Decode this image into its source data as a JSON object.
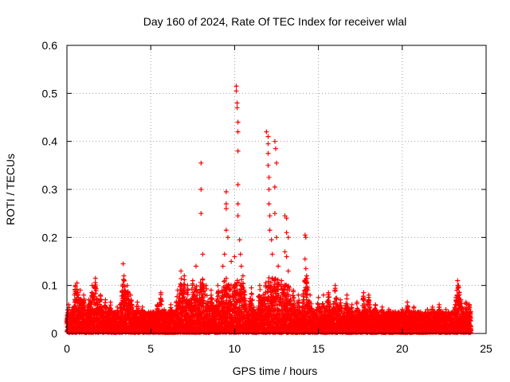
{
  "chart_data": {
    "type": "scatter",
    "title": "Day 160 of 2024, Rate Of TEC Index for receiver wlal",
    "xlabel": "GPS time / hours",
    "ylabel": "ROTI / TECUs",
    "xlim": [
      0,
      25
    ],
    "ylim": [
      0,
      0.6
    ],
    "xticks": [
      0,
      5,
      10,
      15,
      20,
      25
    ],
    "yticks": [
      0,
      0.1,
      0.2,
      0.3,
      0.4,
      0.5,
      0.6
    ],
    "xtick_labels": [
      "0",
      "5",
      "10",
      "15",
      "20",
      "25"
    ],
    "ytick_labels": [
      "0",
      "0.1",
      "0.2",
      "0.3",
      "0.4",
      "0.5",
      "0.6"
    ],
    "grid": true,
    "marker": "+",
    "marker_color": "#ff0000",
    "series": [
      {
        "name": "ROTI",
        "points": [
          [
            0.1,
            0.06
          ],
          [
            0.3,
            0.05
          ],
          [
            0.5,
            0.1
          ],
          [
            0.6,
            0.105
          ],
          [
            0.8,
            0.09
          ],
          [
            1.0,
            0.08
          ],
          [
            1.3,
            0.07
          ],
          [
            1.5,
            0.1
          ],
          [
            1.7,
            0.115
          ],
          [
            2.0,
            0.08
          ],
          [
            2.3,
            0.07
          ],
          [
            2.6,
            0.065
          ],
          [
            3.0,
            0.055
          ],
          [
            3.35,
            0.145
          ],
          [
            3.4,
            0.12
          ],
          [
            3.6,
            0.1
          ],
          [
            3.8,
            0.08
          ],
          [
            4.2,
            0.065
          ],
          [
            4.5,
            0.055
          ],
          [
            5.0,
            0.045
          ],
          [
            5.4,
            0.06
          ],
          [
            5.6,
            0.085
          ],
          [
            5.8,
            0.05
          ],
          [
            6.2,
            0.06
          ],
          [
            6.6,
            0.09
          ],
          [
            6.8,
            0.13
          ],
          [
            7.0,
            0.12
          ],
          [
            7.2,
            0.1
          ],
          [
            7.5,
            0.11
          ],
          [
            7.7,
            0.14
          ],
          [
            8.0,
            0.355
          ],
          [
            8.0,
            0.3
          ],
          [
            8.0,
            0.25
          ],
          [
            8.1,
            0.165
          ],
          [
            8.3,
            0.1
          ],
          [
            8.6,
            0.09
          ],
          [
            9.0,
            0.1
          ],
          [
            9.3,
            0.14
          ],
          [
            9.4,
            0.165
          ],
          [
            9.5,
            0.295
          ],
          [
            9.5,
            0.27
          ],
          [
            9.5,
            0.26
          ],
          [
            9.5,
            0.215
          ],
          [
            9.6,
            0.2
          ],
          [
            9.8,
            0.15
          ],
          [
            10.0,
            0.16
          ],
          [
            10.1,
            0.515
          ],
          [
            10.1,
            0.505
          ],
          [
            10.15,
            0.48
          ],
          [
            10.15,
            0.47
          ],
          [
            10.2,
            0.44
          ],
          [
            10.2,
            0.42
          ],
          [
            10.2,
            0.38
          ],
          [
            10.2,
            0.31
          ],
          [
            10.2,
            0.27
          ],
          [
            10.2,
            0.245
          ],
          [
            10.3,
            0.195
          ],
          [
            10.35,
            0.165
          ],
          [
            10.4,
            0.14
          ],
          [
            10.5,
            0.12
          ],
          [
            11.0,
            0.095
          ],
          [
            11.5,
            0.1
          ],
          [
            11.7,
            0.08
          ],
          [
            11.9,
            0.42
          ],
          [
            12.0,
            0.41
          ],
          [
            12.0,
            0.395
          ],
          [
            12.0,
            0.375
          ],
          [
            12.0,
            0.35
          ],
          [
            12.05,
            0.325
          ],
          [
            12.05,
            0.3
          ],
          [
            12.05,
            0.27
          ],
          [
            12.1,
            0.245
          ],
          [
            12.1,
            0.215
          ],
          [
            12.2,
            0.195
          ],
          [
            12.25,
            0.165
          ],
          [
            12.4,
            0.4
          ],
          [
            12.45,
            0.385
          ],
          [
            12.5,
            0.355
          ],
          [
            12.4,
            0.305
          ],
          [
            12.4,
            0.25
          ],
          [
            12.5,
            0.2
          ],
          [
            12.6,
            0.14
          ],
          [
            12.8,
            0.11
          ],
          [
            13.0,
            0.245
          ],
          [
            13.1,
            0.24
          ],
          [
            13.1,
            0.21
          ],
          [
            13.2,
            0.2
          ],
          [
            13.0,
            0.17
          ],
          [
            13.1,
            0.16
          ],
          [
            13.2,
            0.13
          ],
          [
            13.5,
            0.09
          ],
          [
            13.8,
            0.08
          ],
          [
            14.2,
            0.205
          ],
          [
            14.25,
            0.2
          ],
          [
            14.2,
            0.155
          ],
          [
            14.25,
            0.135
          ],
          [
            14.3,
            0.12
          ],
          [
            14.5,
            0.08
          ],
          [
            15.0,
            0.075
          ],
          [
            15.3,
            0.08
          ],
          [
            15.6,
            0.085
          ],
          [
            16.0,
            0.1
          ],
          [
            16.3,
            0.07
          ],
          [
            16.7,
            0.08
          ],
          [
            17.0,
            0.06
          ],
          [
            17.3,
            0.065
          ],
          [
            17.7,
            0.085
          ],
          [
            18.0,
            0.08
          ],
          [
            18.4,
            0.06
          ],
          [
            18.8,
            0.055
          ],
          [
            19.2,
            0.05
          ],
          [
            19.6,
            0.045
          ],
          [
            20.0,
            0.05
          ],
          [
            20.3,
            0.065
          ],
          [
            20.7,
            0.055
          ],
          [
            21.0,
            0.045
          ],
          [
            21.5,
            0.05
          ],
          [
            21.8,
            0.055
          ],
          [
            22.2,
            0.06
          ],
          [
            22.6,
            0.05
          ],
          [
            23.0,
            0.045
          ],
          [
            23.3,
            0.11
          ],
          [
            23.35,
            0.1
          ],
          [
            23.4,
            0.085
          ],
          [
            23.5,
            0.07
          ],
          [
            23.8,
            0.065
          ],
          [
            24.0,
            0.06
          ]
        ],
        "baseline_band": {
          "x_range": [
            0,
            24.1
          ],
          "y_min": 0.002,
          "y_max_typical": 0.045,
          "description_values": [
            0.002,
            0.045
          ]
        }
      }
    ]
  }
}
